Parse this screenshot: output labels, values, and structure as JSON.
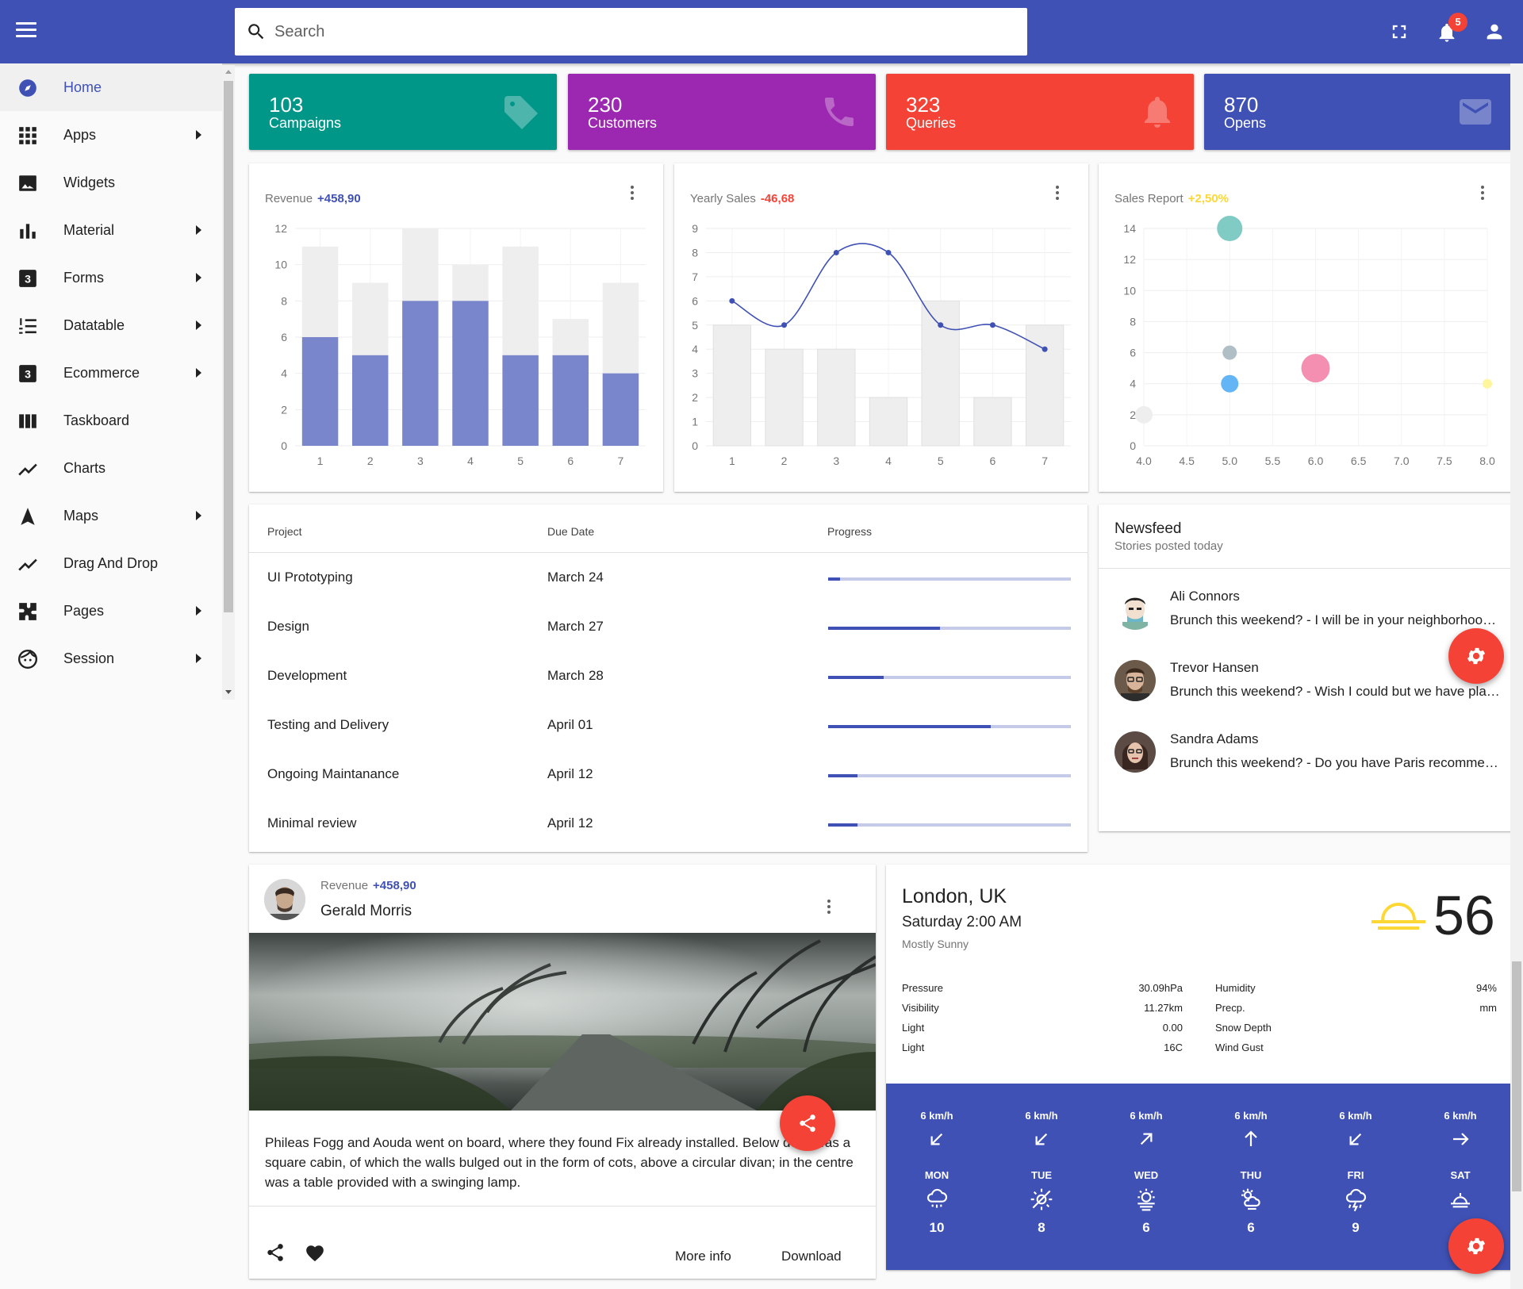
{
  "header": {
    "search_placeholder": "Search",
    "notifications_count": "5",
    "icons": [
      "menu-icon",
      "search-icon",
      "fullscreen-icon",
      "bell-icon",
      "account-icon"
    ]
  },
  "sidebar": {
    "items": [
      {
        "label": "Home",
        "icon": "compass-icon",
        "active": true,
        "has_submenu": false
      },
      {
        "label": "Apps",
        "icon": "apps-grid-icon",
        "active": false,
        "has_submenu": true
      },
      {
        "label": "Widgets",
        "icon": "image-icon",
        "active": false,
        "has_submenu": false
      },
      {
        "label": "Material",
        "icon": "bar-chart-icon",
        "active": false,
        "has_submenu": true
      },
      {
        "label": "Forms",
        "icon": "box-three-icon",
        "active": false,
        "has_submenu": true
      },
      {
        "label": "Datatable",
        "icon": "numbered-list-icon",
        "active": false,
        "has_submenu": true
      },
      {
        "label": "Ecommerce",
        "icon": "box-three-icon",
        "active": false,
        "has_submenu": true
      },
      {
        "label": "Taskboard",
        "icon": "columns-icon",
        "active": false,
        "has_submenu": false
      },
      {
        "label": "Charts",
        "icon": "trend-line-icon",
        "active": false,
        "has_submenu": false
      },
      {
        "label": "Maps",
        "icon": "navigation-arrow-icon",
        "active": false,
        "has_submenu": true
      },
      {
        "label": "Drag And Drop",
        "icon": "trend-line-icon",
        "active": false,
        "has_submenu": false
      },
      {
        "label": "Pages",
        "icon": "extension-icon",
        "active": false,
        "has_submenu": true
      },
      {
        "label": "Session",
        "icon": "face-icon",
        "active": false,
        "has_submenu": true
      }
    ]
  },
  "stats": [
    {
      "value": "103",
      "label": "Campaigns",
      "color": "#009688",
      "icon": "tag-icon"
    },
    {
      "value": "230",
      "label": "Customers",
      "color": "#9c27b0",
      "icon": "phone-icon"
    },
    {
      "value": "323",
      "label": "Queries",
      "color": "#f44336",
      "icon": "bell-icon"
    },
    {
      "value": "870",
      "label": "Opens",
      "color": "#3f51b5",
      "icon": "mail-icon"
    }
  ],
  "revenue_card": {
    "title": "Revenue",
    "delta": "+458,90",
    "delta_color": "#3f51b5"
  },
  "yearly_card": {
    "title": "Yearly Sales",
    "delta": "-46,68",
    "delta_color": "#f44336"
  },
  "sales_card": {
    "title": "Sales Report",
    "delta": "+2,50%",
    "delta_color": "#fdd835"
  },
  "chart_data": [
    {
      "type": "bar",
      "categories": [
        "1",
        "2",
        "3",
        "4",
        "5",
        "6",
        "7"
      ],
      "series": [
        {
          "values": [
            6,
            5,
            8,
            8,
            5,
            5,
            4
          ],
          "color": "#7986cb"
        },
        {
          "values": [
            11,
            9,
            12,
            10,
            11,
            7,
            9
          ],
          "color": "#eeeeee"
        }
      ],
      "stacked": false,
      "ylim": [
        0,
        12
      ],
      "yticks": [
        0,
        2,
        4,
        6,
        8,
        10,
        12
      ],
      "grid": true
    },
    {
      "type": "line",
      "categories": [
        "1",
        "2",
        "3",
        "4",
        "5",
        "6",
        "7"
      ],
      "series": [
        {
          "type": "bar",
          "values": [
            5,
            4,
            4,
            2,
            6,
            2,
            5
          ],
          "color": "#eeeeee"
        },
        {
          "type": "line",
          "values": [
            6,
            5,
            8,
            8,
            5,
            5,
            4
          ],
          "color": "#3f51b5"
        }
      ],
      "ylim": [
        0,
        9
      ],
      "yticks": [
        0,
        1,
        2,
        3,
        4,
        5,
        6,
        7,
        8,
        9
      ],
      "grid": true
    },
    {
      "type": "scatter",
      "xlim": [
        4.0,
        8.0
      ],
      "xticks": [
        "4.0",
        "4.5",
        "5.0",
        "5.5",
        "6.0",
        "6.5",
        "7.0",
        "7.5",
        "8.0"
      ],
      "ylim": [
        0,
        14
      ],
      "yticks": [
        0,
        2,
        4,
        6,
        8,
        10,
        12,
        14
      ],
      "grid": true,
      "points": [
        {
          "x": 5.0,
          "y": 14,
          "r": 16,
          "color": "#80cbc4"
        },
        {
          "x": 5.0,
          "y": 6,
          "r": 9,
          "color": "#b0bec5"
        },
        {
          "x": 5.0,
          "y": 4,
          "r": 11,
          "color": "#64b5f6"
        },
        {
          "x": 6.0,
          "y": 5,
          "r": 18,
          "color": "#f48fb1"
        },
        {
          "x": 4.0,
          "y": 2,
          "r": 11,
          "color": "#eeeeee"
        },
        {
          "x": 8.0,
          "y": 4,
          "r": 6,
          "color": "#fff59d"
        }
      ]
    }
  ],
  "projects": {
    "headers": {
      "project": "Project",
      "due": "Due Date",
      "progress": "Progress"
    },
    "rows": [
      {
        "name": "UI Prototyping",
        "due": "March 24",
        "progress": 0.05
      },
      {
        "name": "Design",
        "due": "March 27",
        "progress": 0.46
      },
      {
        "name": "Development",
        "due": "March 28",
        "progress": 0.23
      },
      {
        "name": "Testing and Delivery",
        "due": "April 01",
        "progress": 0.67
      },
      {
        "name": "Ongoing Maintanance",
        "due": "April 12",
        "progress": 0.12
      },
      {
        "name": "Minimal review",
        "due": "April 12",
        "progress": 0.12
      }
    ]
  },
  "newsfeed": {
    "title": "Newsfeed",
    "subtitle": "Stories posted today",
    "items": [
      {
        "name": "Ali Connors",
        "message": "Brunch this weekend? - I will be in your neighborhood doing errands this weekend."
      },
      {
        "name": "Trevor Hansen",
        "message": "Brunch this weekend? - Wish I could but we have plans this weekend."
      },
      {
        "name": "Sandra Adams",
        "message": "Brunch this weekend? - Do you have Paris recommendations?"
      }
    ]
  },
  "post": {
    "revenue_label": "Revenue",
    "revenue_value": "+458,90",
    "author": "Gerald Morris",
    "text": "Phileas Fogg and Aouda went on board, where they found Fix already installed. Below deck was a square cabin, of which the walls bulged out in the form of cots, above a circular divan; in the centre was a table provided with a swinging lamp.",
    "more_info": "More info",
    "download": "Download"
  },
  "weather": {
    "city": "London, UK",
    "time": "Saturday 2:00 AM",
    "condition": "Mostly Sunny",
    "temperature": "56",
    "left_stats": [
      {
        "label": "Pressure",
        "value": "30.09hPa"
      },
      {
        "label": "Visibility",
        "value": "11.27km"
      },
      {
        "label": "Light",
        "value": "0.00"
      },
      {
        "label": "Light",
        "value": "16C"
      }
    ],
    "right_stats": [
      {
        "label": "Humidity",
        "value": "94%"
      },
      {
        "label": "Precp.",
        "value": "mm"
      },
      {
        "label": "Snow Depth",
        "value": ""
      },
      {
        "label": "Wind Gust",
        "value": ""
      }
    ],
    "forecast": [
      {
        "speed": "6 km/h",
        "dir": "south-west",
        "day": "MON",
        "icon": "cloud-rain-icon",
        "temp": "10"
      },
      {
        "speed": "6 km/h",
        "dir": "south-west",
        "day": "TUE",
        "icon": "sun-slash-icon",
        "temp": "8"
      },
      {
        "speed": "6 km/h",
        "dir": "north-east",
        "day": "WED",
        "icon": "sun-fog-icon",
        "temp": "6"
      },
      {
        "speed": "6 km/h",
        "dir": "north",
        "day": "THU",
        "icon": "cloud-sun-icon",
        "temp": "6"
      },
      {
        "speed": "6 km/h",
        "dir": "south-west",
        "day": "FRI",
        "icon": "cloud-storm-icon",
        "temp": "9"
      },
      {
        "speed": "6 km/h",
        "dir": "east",
        "day": "SAT",
        "icon": "sunset-icon",
        "temp": ""
      }
    ]
  }
}
